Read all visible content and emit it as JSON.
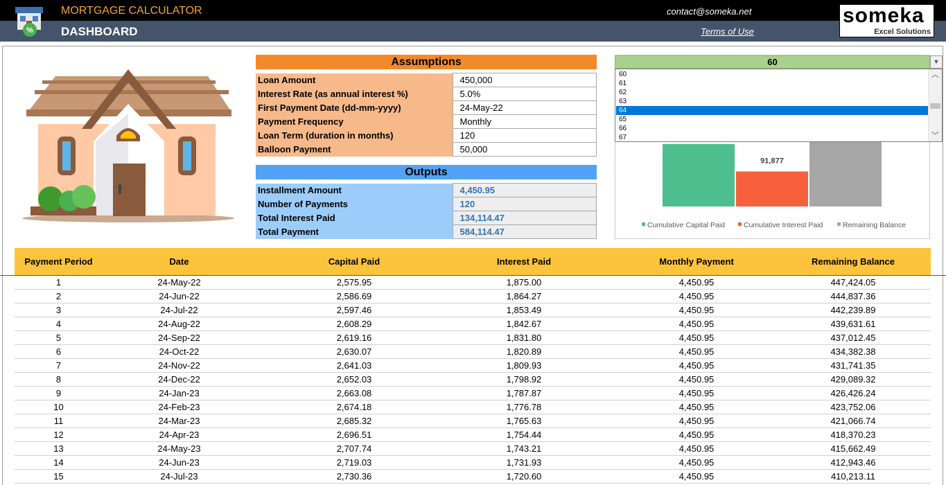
{
  "header": {
    "app_title": "MORTGAGE CALCULATOR",
    "page_title": "DASHBOARD",
    "contact": "contact@someka.net",
    "terms_link": "Terms of Use",
    "brand_name": "someka",
    "brand_tagline": "Excel Solutions",
    "logo_icon": "house-percent-icon"
  },
  "colors": {
    "header_dark": "#000000",
    "header_blue": "#44546a",
    "app_title": "#f4a43a",
    "assumptions": "#f4892a",
    "assumptions_label_bg": "#f7b98a",
    "outputs": "#52a2f5",
    "outputs_label_bg": "#9ccdfa",
    "table_header": "#fcc33d",
    "output_value": "#2e75b6",
    "select_bg": "#a9d18e"
  },
  "illustration": {
    "icon": "house-icon"
  },
  "assumptions": {
    "title": "Assumptions",
    "rows": [
      {
        "label": "Loan Amount",
        "value": "450,000"
      },
      {
        "label": "Interest Rate (as annual interest %)",
        "value": "5.0%"
      },
      {
        "label": "First Payment Date (dd-mm-yyyy)",
        "value": "24-May-22"
      },
      {
        "label": "Payment Frequency",
        "value": "Monthly"
      },
      {
        "label": "Loan Term (duration in months)",
        "value": "120"
      },
      {
        "label": "Balloon Payment",
        "value": "50,000"
      }
    ]
  },
  "outputs": {
    "title": "Outputs",
    "rows": [
      {
        "label": "Installment Amount",
        "value": "4,450.95"
      },
      {
        "label": "Number of Payments",
        "value": "120"
      },
      {
        "label": "Total Interest Paid",
        "value": "134,114.47"
      },
      {
        "label": "Total Payment",
        "value": "584,114.47"
      }
    ]
  },
  "period_select": {
    "value": "60",
    "options": [
      "60",
      "61",
      "62",
      "63",
      "64",
      "65",
      "66",
      "67"
    ],
    "highlighted": "64"
  },
  "chart_data": {
    "type": "bar",
    "title": "",
    "categories": [
      "Cumulative Capital Paid",
      "Cumulative Interest Paid",
      "Remaining Balance"
    ],
    "values": [
      164000,
      91877,
      196000
    ],
    "data_labels": [
      "",
      "91,877",
      ""
    ],
    "colors": [
      "#4dbf8e",
      "#f7603b",
      "#a6a6a6"
    ],
    "ylim": [
      0,
      200000
    ],
    "grid": false,
    "legend": "bottom"
  },
  "schedule": {
    "columns": [
      "Payment Period",
      "Date",
      "Capital Paid",
      "Interest Paid",
      "Monthly Payment",
      "Remaining Balance"
    ],
    "rows": [
      [
        "1",
        "24-May-22",
        "2,575.95",
        "1,875.00",
        "4,450.95",
        "447,424.05"
      ],
      [
        "2",
        "24-Jun-22",
        "2,586.69",
        "1,864.27",
        "4,450.95",
        "444,837.36"
      ],
      [
        "3",
        "24-Jul-22",
        "2,597.46",
        "1,853.49",
        "4,450.95",
        "442,239.89"
      ],
      [
        "4",
        "24-Aug-22",
        "2,608.29",
        "1,842.67",
        "4,450.95",
        "439,631.61"
      ],
      [
        "5",
        "24-Sep-22",
        "2,619.16",
        "1,831.80",
        "4,450.95",
        "437,012.45"
      ],
      [
        "6",
        "24-Oct-22",
        "2,630.07",
        "1,820.89",
        "4,450.95",
        "434,382.38"
      ],
      [
        "7",
        "24-Nov-22",
        "2,641.03",
        "1,809.93",
        "4,450.95",
        "431,741.35"
      ],
      [
        "8",
        "24-Dec-22",
        "2,652.03",
        "1,798.92",
        "4,450.95",
        "429,089.32"
      ],
      [
        "9",
        "24-Jan-23",
        "2,663.08",
        "1,787.87",
        "4,450.95",
        "426,426.24"
      ],
      [
        "10",
        "24-Feb-23",
        "2,674.18",
        "1,776.78",
        "4,450.95",
        "423,752.06"
      ],
      [
        "11",
        "24-Mar-23",
        "2,685.32",
        "1,765.63",
        "4,450.95",
        "421,066.74"
      ],
      [
        "12",
        "24-Apr-23",
        "2,696.51",
        "1,754.44",
        "4,450.95",
        "418,370.23"
      ],
      [
        "13",
        "24-May-23",
        "2,707.74",
        "1,743.21",
        "4,450.95",
        "415,662.49"
      ],
      [
        "14",
        "24-Jun-23",
        "2,719.03",
        "1,731.93",
        "4,450.95",
        "412,943.46"
      ],
      [
        "15",
        "24-Jul-23",
        "2,730.36",
        "1,720.60",
        "4,450.95",
        "410,213.11"
      ]
    ]
  }
}
